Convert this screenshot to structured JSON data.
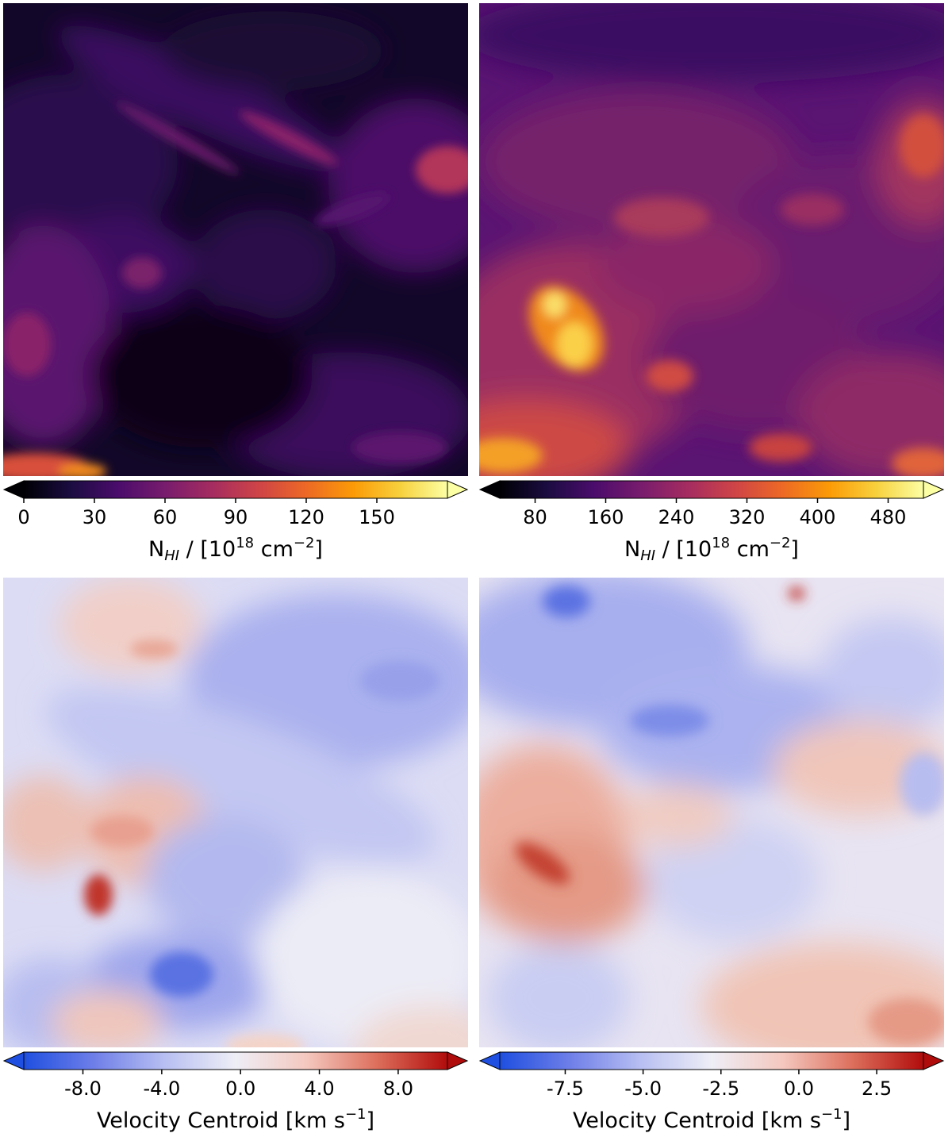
{
  "figure": {
    "panels": [
      {
        "id": "nhi-left",
        "colormap": "inferno",
        "colormap_stops": [
          "#000004",
          "#1b0c41",
          "#4a0c6b",
          "#781c6d",
          "#a52c60",
          "#cf4446",
          "#ed6925",
          "#fb9b06",
          "#f7d13d",
          "#fcffa4"
        ],
        "range": [
          0,
          180
        ],
        "ticks": [
          "0",
          "30",
          "60",
          "90",
          "120",
          "150"
        ],
        "tick_values": [
          0,
          30,
          60,
          90,
          120,
          150
        ],
        "extend": "both",
        "label_main": "N",
        "label_sub": "HI",
        "label_mid": " / [10",
        "label_sup": "18",
        "label_tail": " cm",
        "label_sup2": "−2",
        "label_end": "]"
      },
      {
        "id": "nhi-right",
        "colormap": "inferno",
        "colormap_stops": [
          "#000004",
          "#1b0c41",
          "#4a0c6b",
          "#781c6d",
          "#a52c60",
          "#cf4446",
          "#ed6925",
          "#fb9b06",
          "#f7d13d",
          "#fcffa4"
        ],
        "range": [
          40,
          520
        ],
        "ticks": [
          "80",
          "160",
          "240",
          "320",
          "400",
          "480"
        ],
        "tick_values": [
          80,
          160,
          240,
          320,
          400,
          480
        ],
        "extend": "both",
        "label_main": "N",
        "label_sub": "HI",
        "label_mid": " / [10",
        "label_sup": "18",
        "label_tail": " cm",
        "label_sup2": "−2",
        "label_end": "]"
      },
      {
        "id": "vc-left",
        "colormap": "coolwarm-bwr",
        "colormap_stops": [
          "#1f4fe0",
          "#6f7fe8",
          "#b8bff2",
          "#eeeef6",
          "#f4c8bf",
          "#dd6f5c",
          "#b10c0c"
        ],
        "range": [
          -11,
          10.5
        ],
        "ticks": [
          "-8.0",
          "-4.0",
          "0.0",
          "4.0",
          "8.0"
        ],
        "tick_values": [
          -8,
          -4,
          0,
          4,
          8
        ],
        "extend": "both",
        "label_main": "Velocity Centroid [km s",
        "label_sup": "−1",
        "label_end": "]"
      },
      {
        "id": "vc-right",
        "colormap": "coolwarm-bwr",
        "colormap_stops": [
          "#1f4fe0",
          "#6f7fe8",
          "#b8bff2",
          "#eeeef6",
          "#f4c8bf",
          "#dd6f5c",
          "#b10c0c"
        ],
        "range": [
          -9.6,
          4
        ],
        "ticks": [
          "-7.5",
          "-5.0",
          "-2.5",
          "0.0",
          "2.5"
        ],
        "tick_values": [
          -7.5,
          -5,
          -2.5,
          0,
          2.5
        ],
        "extend": "both",
        "label_main": "Velocity Centroid [km s",
        "label_sup": "−1",
        "label_end": "]"
      }
    ]
  }
}
